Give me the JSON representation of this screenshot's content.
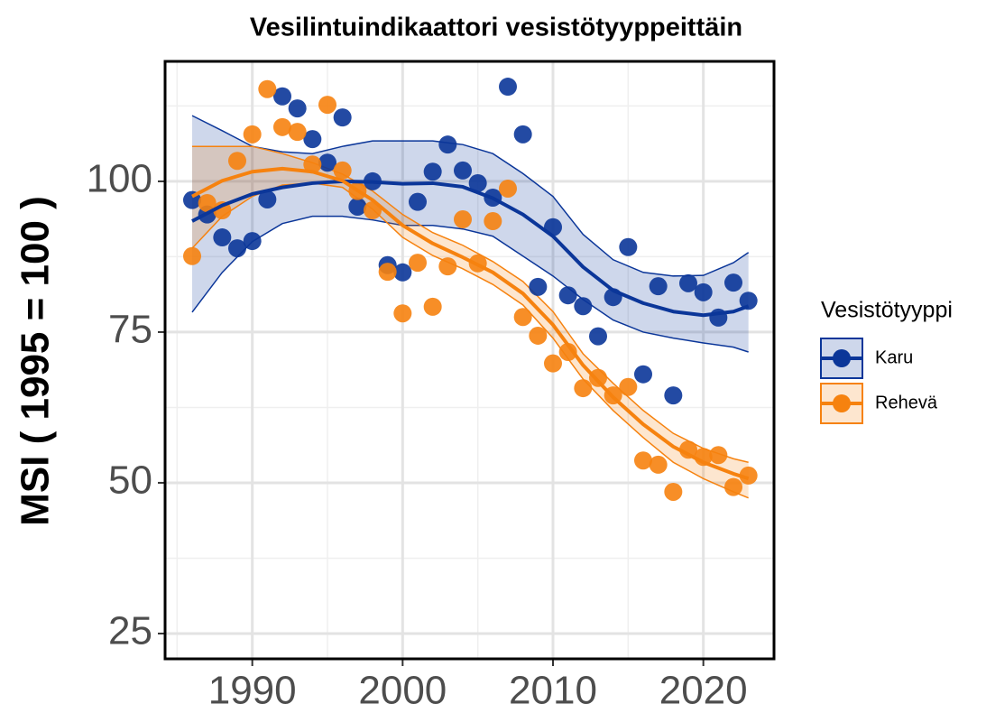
{
  "chart_data": {
    "type": "scatter",
    "title": "Vesilintuindikaattori vesistötyyppeittäin",
    "y_label": "MSI ( 1995 = 100 )",
    "legend_title": "Vesistötyyppi",
    "legend_position": "right",
    "grid": true,
    "xlim": [
      1984.2,
      2024.7
    ],
    "ylim": [
      20.8,
      119.9
    ],
    "xticks": [
      1990,
      2000,
      2010,
      2020
    ],
    "yticks": [
      25,
      50,
      75,
      100
    ],
    "minor_xticks": [
      1985,
      1995,
      2005,
      2015
    ],
    "minor_yticks": [
      37.5,
      62.5,
      87.5,
      112.5
    ],
    "x": [
      1986,
      1987,
      1988,
      1989,
      1990,
      1991,
      1992,
      1993,
      1994,
      1995,
      1996,
      1997,
      1998,
      1999,
      2000,
      2001,
      2002,
      2003,
      2004,
      2005,
      2006,
      2007,
      2008,
      2009,
      2010,
      2011,
      2012,
      2013,
      2014,
      2015,
      2016,
      2017,
      2018,
      2019,
      2020,
      2021,
      2022,
      2023
    ],
    "trend_x": [
      1986,
      1988,
      1990,
      1992,
      1994,
      1996,
      1998,
      2000,
      2002,
      2004,
      2006,
      2008,
      2010,
      2012,
      2014,
      2016,
      2018,
      2020,
      2022,
      2023
    ],
    "series": [
      {
        "name": "Karu",
        "color": "#0b3699",
        "values": [
          96.9,
          94.5,
          90.7,
          88.9,
          90.1,
          97.0,
          114.1,
          112.1,
          107.0,
          103.1,
          110.6,
          95.8,
          100,
          86.1,
          84.9,
          96.6,
          101.6,
          106.1,
          101.8,
          99.7,
          97.3,
          115.7,
          107.8,
          82.5,
          92.4,
          81.1,
          79.3,
          74.3,
          80.8,
          89.1,
          68.0,
          82.6,
          64.5,
          83.1,
          81.6,
          77.4,
          83.2,
          80.2
        ],
        "trend": [
          93.4,
          96.0,
          97.9,
          99.0,
          99.7,
          100,
          99.9,
          99.6,
          99.7,
          99.1,
          97.2,
          94.5,
          90.9,
          85.8,
          81.9,
          79.8,
          78.4,
          77.8,
          78.4,
          79.3
        ],
        "upper": [
          110.9,
          108.4,
          105.8,
          104.9,
          104.6,
          105.8,
          106.7,
          106.7,
          106.7,
          106.1,
          104.6,
          101.3,
          97.5,
          91.2,
          87.0,
          84.9,
          84.3,
          84.4,
          86.5,
          88.2
        ],
        "lower": [
          78.3,
          84.9,
          90.0,
          93.0,
          94.2,
          94.2,
          93.6,
          92.7,
          92.7,
          92.1,
          90.9,
          87.6,
          84.3,
          80.4,
          77.0,
          75.0,
          74.0,
          73.2,
          72.5,
          71.7
        ]
      },
      {
        "name": "Rehevä",
        "color": "#f6820f",
        "values": [
          87.6,
          96.4,
          95.2,
          103.4,
          107.8,
          115.3,
          109.0,
          108.2,
          102.8,
          112.7,
          101.8,
          98.4,
          95.2,
          85.0,
          78.1,
          86.5,
          79.2,
          85.9,
          93.7,
          86.4,
          93.4,
          98.8,
          77.5,
          74.4,
          69.8,
          71.7,
          65.7,
          67.4,
          64.5,
          65.9,
          53.7,
          53.0,
          48.5,
          55.5,
          54.3,
          54.6,
          49.3,
          51.2
        ],
        "trend": [
          97.5,
          100.1,
          101.6,
          102.1,
          101.6,
          100.1,
          96.9,
          92.7,
          89.7,
          87.4,
          84.9,
          81.4,
          76.2,
          69.5,
          64.2,
          59.7,
          56.0,
          53.4,
          51.5,
          50.7
        ],
        "upper": [
          105.8,
          105.8,
          105.8,
          104.6,
          103.1,
          101.2,
          98.4,
          94.5,
          91.5,
          89.4,
          86.7,
          83.4,
          78.4,
          71.4,
          66.5,
          62.0,
          58.2,
          55.7,
          54.0,
          53.4
        ],
        "lower": [
          88.9,
          94.2,
          97.5,
          99.4,
          99.7,
          99.0,
          95.4,
          90.7,
          87.7,
          85.5,
          82.9,
          79.5,
          74.0,
          67.2,
          62.0,
          57.5,
          53.4,
          50.7,
          48.5,
          47.5
        ]
      }
    ]
  }
}
